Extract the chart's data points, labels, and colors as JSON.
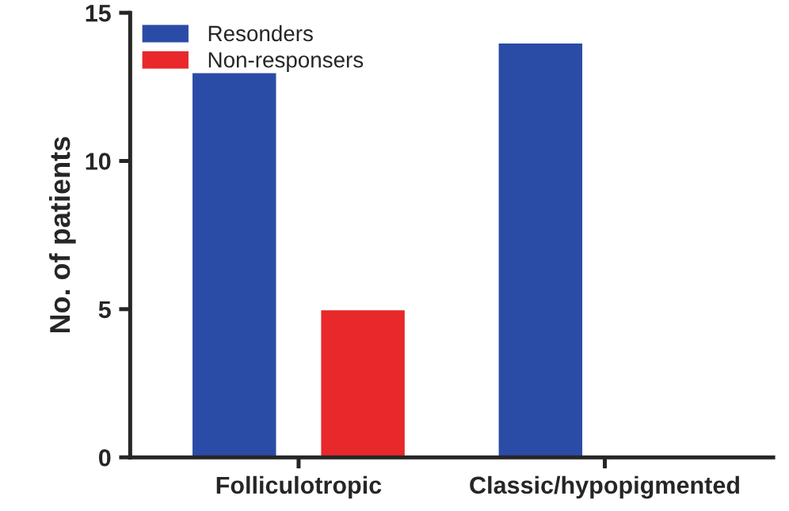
{
  "chart_data": {
    "type": "bar",
    "ylabel": "No. of patients",
    "categories": [
      "Folliculotropic",
      "Classic/hypopigmented"
    ],
    "series": [
      {
        "name": "Resonders",
        "color": "#2b4ca6",
        "values": [
          13,
          14
        ]
      },
      {
        "name": "Non-responsers",
        "color": "#e8282b",
        "values": [
          5,
          null
        ]
      }
    ],
    "ylim": [
      0,
      15
    ],
    "yticks": [
      0,
      5,
      10,
      15
    ],
    "grid": false,
    "legend": "top left"
  }
}
